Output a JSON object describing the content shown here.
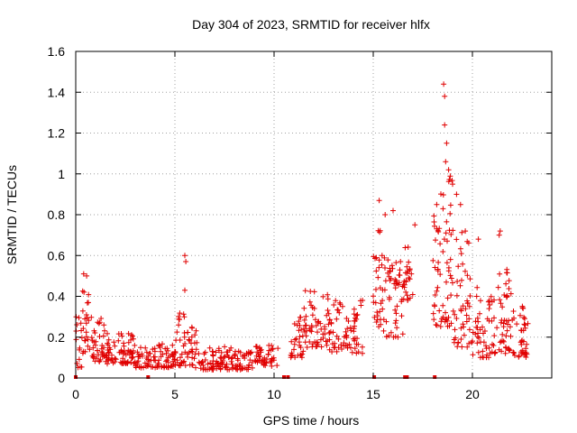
{
  "chart_data": {
    "type": "scatter",
    "title": "Day 304 of 2023, SRMTID for receiver hlfx",
    "xlabel": "GPS time / hours",
    "ylabel": "SRMTID / TECUs",
    "xlim": [
      0,
      24
    ],
    "ylim": [
      0,
      1.6
    ],
    "x_ticks": [
      0,
      5,
      10,
      15,
      20
    ],
    "x_tick_labels": [
      "0",
      "5",
      "10",
      "15",
      "20"
    ],
    "y_ticks": [
      0,
      0.2,
      0.4,
      0.6,
      0.8,
      1.0,
      1.2,
      1.4,
      1.6
    ],
    "y_tick_labels": [
      "0",
      "0.2",
      "0.4",
      "0.6",
      "0.8",
      "1",
      "1.2",
      "1.4",
      "1.6"
    ],
    "grid": true,
    "marker": "plus",
    "colors": {
      "series": "#e00000",
      "grid": "#a0a0a0",
      "axis": "#000000"
    },
    "envelope_note": "per-segment approximate point cloud: t0,t1 hours; lo,hi value range; n points",
    "segments": [
      {
        "t0": 0.0,
        "t1": 0.3,
        "lo": 0.05,
        "hi": 0.3,
        "n": 14
      },
      {
        "t0": 0.3,
        "t1": 0.7,
        "lo": 0.12,
        "hi": 0.51,
        "n": 22
      },
      {
        "t0": 0.7,
        "t1": 1.5,
        "lo": 0.08,
        "hi": 0.3,
        "n": 40
      },
      {
        "t0": 1.5,
        "t1": 3.0,
        "lo": 0.07,
        "hi": 0.22,
        "n": 75
      },
      {
        "t0": 3.0,
        "t1": 4.0,
        "lo": 0.05,
        "hi": 0.15,
        "n": 40
      },
      {
        "t0": 4.0,
        "t1": 5.0,
        "lo": 0.05,
        "hi": 0.17,
        "n": 45
      },
      {
        "t0": 5.0,
        "t1": 5.7,
        "lo": 0.06,
        "hi": 0.32,
        "n": 35
      },
      {
        "t0": 5.7,
        "t1": 6.2,
        "lo": 0.05,
        "hi": 0.27,
        "n": 22
      },
      {
        "t0": 6.2,
        "t1": 8.0,
        "lo": 0.04,
        "hi": 0.16,
        "n": 75
      },
      {
        "t0": 8.0,
        "t1": 9.0,
        "lo": 0.04,
        "hi": 0.14,
        "n": 40
      },
      {
        "t0": 9.0,
        "t1": 10.2,
        "lo": 0.05,
        "hi": 0.16,
        "n": 50
      },
      {
        "t0": 10.8,
        "t1": 11.5,
        "lo": 0.1,
        "hi": 0.3,
        "n": 30
      },
      {
        "t0": 11.5,
        "t1": 12.8,
        "lo": 0.15,
        "hi": 0.43,
        "n": 60
      },
      {
        "t0": 12.8,
        "t1": 14.5,
        "lo": 0.12,
        "hi": 0.38,
        "n": 70
      },
      {
        "t0": 15.0,
        "t1": 15.5,
        "lo": 0.25,
        "hi": 0.75,
        "n": 30
      },
      {
        "t0": 15.5,
        "t1": 16.5,
        "lo": 0.2,
        "hi": 0.62,
        "n": 50
      },
      {
        "t0": 16.5,
        "t1": 17.0,
        "lo": 0.38,
        "hi": 0.65,
        "n": 25
      },
      {
        "t0": 18.0,
        "t1": 18.4,
        "lo": 0.25,
        "hi": 0.8,
        "n": 25
      },
      {
        "t0": 18.4,
        "t1": 19.0,
        "lo": 0.25,
        "hi": 1.0,
        "n": 40
      },
      {
        "t0": 19.0,
        "t1": 20.0,
        "lo": 0.15,
        "hi": 0.8,
        "n": 50
      },
      {
        "t0": 20.0,
        "t1": 21.0,
        "lo": 0.1,
        "hi": 0.45,
        "n": 45
      },
      {
        "t0": 21.0,
        "t1": 22.0,
        "lo": 0.12,
        "hi": 0.55,
        "n": 50
      },
      {
        "t0": 22.0,
        "t1": 22.8,
        "lo": 0.1,
        "hi": 0.38,
        "n": 40
      }
    ],
    "notable_points": [
      {
        "x": 0.4,
        "y": 0.51
      },
      {
        "x": 0.55,
        "y": 0.5
      },
      {
        "x": 5.5,
        "y": 0.6
      },
      {
        "x": 5.55,
        "y": 0.57
      },
      {
        "x": 5.5,
        "y": 0.43
      },
      {
        "x": 15.3,
        "y": 0.87
      },
      {
        "x": 15.6,
        "y": 0.8
      },
      {
        "x": 16.0,
        "y": 0.82
      },
      {
        "x": 18.55,
        "y": 1.44
      },
      {
        "x": 18.6,
        "y": 1.38
      },
      {
        "x": 18.6,
        "y": 1.24
      },
      {
        "x": 18.7,
        "y": 1.15
      },
      {
        "x": 18.65,
        "y": 1.06
      },
      {
        "x": 18.8,
        "y": 1.02
      },
      {
        "x": 19.0,
        "y": 0.95
      },
      {
        "x": 19.2,
        "y": 0.9
      },
      {
        "x": 19.4,
        "y": 0.85
      },
      {
        "x": 18.2,
        "y": 0.85
      },
      {
        "x": 17.1,
        "y": 0.75
      },
      {
        "x": 20.3,
        "y": 0.68
      },
      {
        "x": 21.35,
        "y": 0.7
      },
      {
        "x": 21.4,
        "y": 0.72
      }
    ],
    "zero_markers": [
      0.0,
      3.65,
      10.5,
      10.7,
      15.05,
      16.6,
      16.7,
      18.1
    ]
  }
}
